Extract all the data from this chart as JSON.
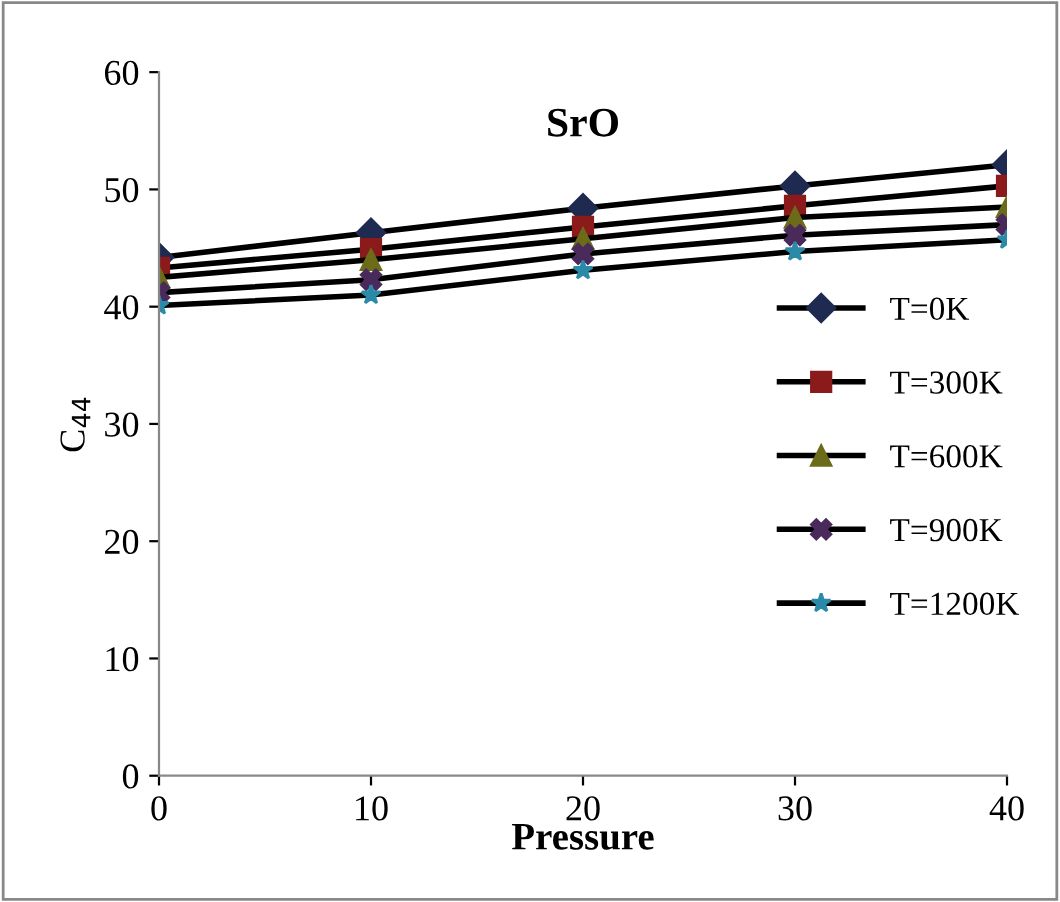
{
  "chart_data": {
    "type": "line",
    "title": "SrO",
    "xlabel": "Pressure",
    "ylabel": "C$_{44}$",
    "x": [
      0,
      10,
      20,
      30,
      40
    ],
    "xlim": [
      0,
      40
    ],
    "xticks": [
      0,
      10,
      20,
      30,
      40
    ],
    "ylim": [
      0,
      60
    ],
    "yticks": [
      0,
      10,
      20,
      30,
      40,
      50,
      60
    ],
    "grid": false,
    "legend": "right",
    "series": [
      {
        "name": "T=0K",
        "color": "#1f2a50",
        "marker": "diamond",
        "values": [
          44.2,
          46.3,
          48.4,
          50.3,
          52.1
        ]
      },
      {
        "name": "T=300K",
        "color": "#8b1a1a",
        "marker": "square",
        "values": [
          43.3,
          44.9,
          46.8,
          48.6,
          50.3
        ]
      },
      {
        "name": "T=600K",
        "color": "#6b6b1a",
        "marker": "triangle",
        "values": [
          42.5,
          44.0,
          45.8,
          47.6,
          48.5
        ]
      },
      {
        "name": "T=900K",
        "color": "#4a2a5a",
        "marker": "cross",
        "values": [
          41.2,
          42.3,
          44.5,
          46.1,
          47.0
        ]
      },
      {
        "name": "T=1200K",
        "color": "#2a8aa8",
        "marker": "star",
        "values": [
          40.1,
          41.0,
          43.1,
          44.7,
          45.7
        ]
      }
    ]
  }
}
